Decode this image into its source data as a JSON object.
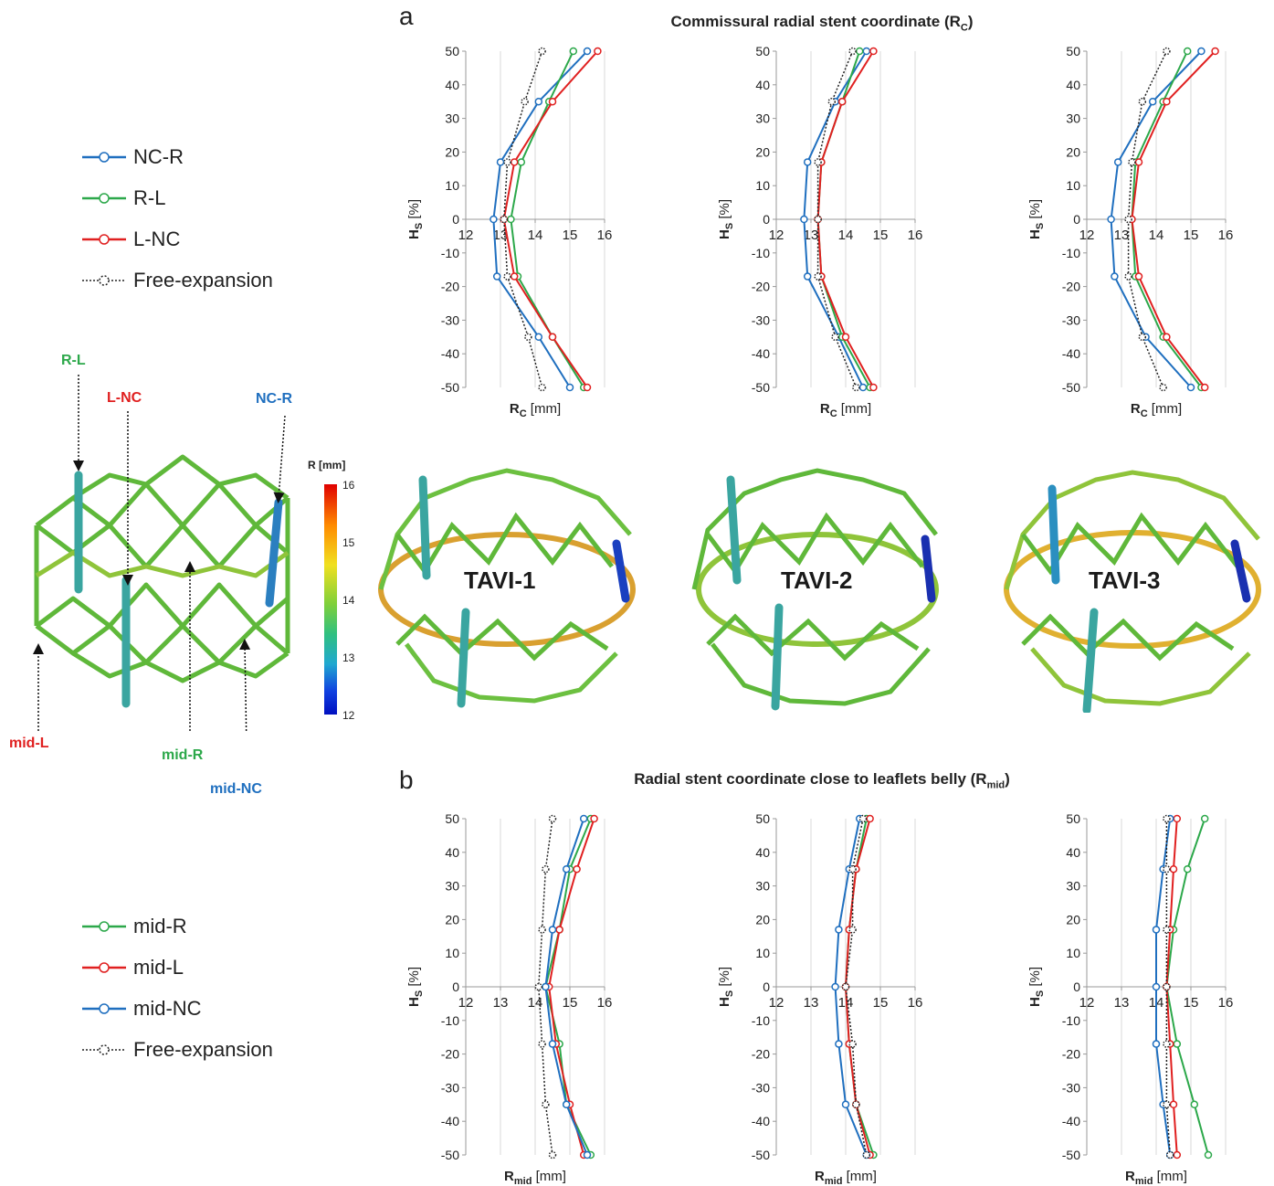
{
  "panel_a": {
    "letter": "a",
    "title_main": "Commissural radial stent coordinate (R",
    "title_sub": "C",
    "title_end": ")"
  },
  "panel_b": {
    "letter": "b",
    "title_main": "Radial stent coordinate close to leaflets belly (R",
    "title_sub": "mid",
    "title_end": ")"
  },
  "legend_top": [
    {
      "label": "NC-R",
      "color": "#1f6fbf",
      "dashed": false
    },
    {
      "label": "R-L",
      "color": "#2ca84a",
      "dashed": false
    },
    {
      "label": "L-NC",
      "color": "#e02020",
      "dashed": false
    },
    {
      "label": "Free-expansion",
      "color": "#222222",
      "dashed": true
    }
  ],
  "legend_bottom": [
    {
      "label": "mid-R",
      "color": "#2ca84a",
      "dashed": false
    },
    {
      "label": "mid-L",
      "color": "#e02020",
      "dashed": false
    },
    {
      "label": "mid-NC",
      "color": "#1f6fbf",
      "dashed": false
    },
    {
      "label": "Free-expansion",
      "color": "#222222",
      "dashed": true
    }
  ],
  "stent_labels": {
    "rl": "R-L",
    "lnc": "L-NC",
    "ncr": "NC-R",
    "midl": "mid-L",
    "midr": "mid-R",
    "midnc": "mid-NC"
  },
  "colorbar": {
    "title": "R [mm]",
    "ticks": [
      "16",
      "15",
      "14",
      "13",
      "12"
    ]
  },
  "tavi_labels": [
    "TAVI-1",
    "TAVI-2",
    "TAVI-3"
  ],
  "chart_data": [
    {
      "type": "line",
      "panel": "a",
      "index": 1,
      "ylabel": "Hs [%]",
      "xlabel_main": "R",
      "xlabel_sub": "C",
      "xlabel_unit": " [mm]",
      "xlim": [
        12,
        16
      ],
      "ylim": [
        -50,
        50
      ],
      "xticks": [
        12,
        13,
        14,
        15,
        16
      ],
      "yticks": [
        50,
        40,
        30,
        20,
        10,
        0,
        -10,
        -20,
        -30,
        -40,
        -50
      ],
      "y": [
        50,
        35,
        17,
        0,
        -17,
        -35,
        -50
      ],
      "series": [
        {
          "name": "NC-R",
          "color": "#1f6fbf",
          "dashed": false,
          "x": [
            15.5,
            14.1,
            13.0,
            12.8,
            12.9,
            14.1,
            15.0
          ]
        },
        {
          "name": "R-L",
          "color": "#2ca84a",
          "dashed": false,
          "x": [
            15.1,
            14.4,
            13.6,
            13.3,
            13.5,
            14.5,
            15.4
          ]
        },
        {
          "name": "L-NC",
          "color": "#e02020",
          "dashed": false,
          "x": [
            15.8,
            14.5,
            13.4,
            13.1,
            13.4,
            14.5,
            15.5
          ]
        },
        {
          "name": "Free-expansion",
          "color": "#222222",
          "dashed": true,
          "x": [
            14.2,
            13.7,
            13.2,
            13.1,
            13.2,
            13.8,
            14.2
          ]
        }
      ]
    },
    {
      "type": "line",
      "panel": "a",
      "index": 2,
      "ylabel": "Hs [%]",
      "xlabel_main": "R",
      "xlabel_sub": "C",
      "xlabel_unit": " [mm]",
      "xlim": [
        12,
        16
      ],
      "ylim": [
        -50,
        50
      ],
      "xticks": [
        12,
        13,
        14,
        15,
        16
      ],
      "yticks": [
        50,
        40,
        30,
        20,
        10,
        0,
        -10,
        -20,
        -30,
        -40,
        -50
      ],
      "y": [
        50,
        35,
        17,
        0,
        -17,
        -35,
        -50
      ],
      "series": [
        {
          "name": "NC-R",
          "color": "#1f6fbf",
          "dashed": false,
          "x": [
            14.6,
            13.7,
            12.9,
            12.8,
            12.9,
            13.8,
            14.5
          ]
        },
        {
          "name": "R-L",
          "color": "#2ca84a",
          "dashed": false,
          "x": [
            14.4,
            13.9,
            13.3,
            13.2,
            13.3,
            13.9,
            14.7
          ]
        },
        {
          "name": "L-NC",
          "color": "#e02020",
          "dashed": false,
          "x": [
            14.8,
            13.9,
            13.3,
            13.2,
            13.3,
            14.0,
            14.8
          ]
        },
        {
          "name": "Free-expansion",
          "color": "#222222",
          "dashed": true,
          "x": [
            14.2,
            13.6,
            13.2,
            13.2,
            13.2,
            13.7,
            14.3
          ]
        }
      ]
    },
    {
      "type": "line",
      "panel": "a",
      "index": 3,
      "ylabel": "Hs [%]",
      "xlabel_main": "R",
      "xlabel_sub": "C",
      "xlabel_unit": " [mm]",
      "xlim": [
        12,
        16
      ],
      "ylim": [
        -50,
        50
      ],
      "xticks": [
        12,
        13,
        14,
        15,
        16
      ],
      "yticks": [
        50,
        40,
        30,
        20,
        10,
        0,
        -10,
        -20,
        -30,
        -40,
        -50
      ],
      "y": [
        50,
        35,
        17,
        0,
        -17,
        -35,
        -50
      ],
      "series": [
        {
          "name": "NC-R",
          "color": "#1f6fbf",
          "dashed": false,
          "x": [
            15.3,
            13.9,
            12.9,
            12.7,
            12.8,
            13.7,
            15.0
          ]
        },
        {
          "name": "R-L",
          "color": "#2ca84a",
          "dashed": false,
          "x": [
            14.9,
            14.2,
            13.4,
            13.3,
            13.4,
            14.2,
            15.3
          ]
        },
        {
          "name": "L-NC",
          "color": "#e02020",
          "dashed": false,
          "x": [
            15.7,
            14.3,
            13.5,
            13.3,
            13.5,
            14.3,
            15.4
          ]
        },
        {
          "name": "Free-expansion",
          "color": "#222222",
          "dashed": true,
          "x": [
            14.3,
            13.6,
            13.3,
            13.2,
            13.2,
            13.6,
            14.2
          ]
        }
      ]
    },
    {
      "type": "line",
      "panel": "b",
      "index": 1,
      "ylabel": "Hs [%]",
      "xlabel_main": "R",
      "xlabel_sub": "mid",
      "xlabel_unit": " [mm]",
      "xlim": [
        12,
        16
      ],
      "ylim": [
        -50,
        50
      ],
      "xticks": [
        12,
        13,
        14,
        15,
        16
      ],
      "yticks": [
        50,
        40,
        30,
        20,
        10,
        0,
        -10,
        -20,
        -30,
        -40,
        -50
      ],
      "y": [
        50,
        35,
        17,
        0,
        -17,
        -35,
        -50
      ],
      "series": [
        {
          "name": "mid-R",
          "color": "#2ca84a",
          "dashed": false,
          "x": [
            15.6,
            15.0,
            14.7,
            14.3,
            14.7,
            14.9,
            15.6
          ]
        },
        {
          "name": "mid-L",
          "color": "#e02020",
          "dashed": false,
          "x": [
            15.7,
            15.2,
            14.7,
            14.4,
            14.6,
            15.0,
            15.4
          ]
        },
        {
          "name": "mid-NC",
          "color": "#1f6fbf",
          "dashed": false,
          "x": [
            15.4,
            14.9,
            14.5,
            14.3,
            14.5,
            14.9,
            15.5
          ]
        },
        {
          "name": "Free-expansion",
          "color": "#222222",
          "dashed": true,
          "x": [
            14.5,
            14.3,
            14.2,
            14.1,
            14.2,
            14.3,
            14.5
          ]
        }
      ]
    },
    {
      "type": "line",
      "panel": "b",
      "index": 2,
      "ylabel": "Hs [%]",
      "xlabel_main": "R",
      "xlabel_sub": "mid",
      "xlabel_unit": " [mm]",
      "xlim": [
        12,
        16
      ],
      "ylim": [
        -50,
        50
      ],
      "xticks": [
        12,
        13,
        14,
        15,
        16
      ],
      "yticks": [
        50,
        40,
        30,
        20,
        10,
        0,
        -10,
        -20,
        -30,
        -40,
        -50
      ],
      "y": [
        50,
        35,
        17,
        0,
        -17,
        -35,
        -50
      ],
      "series": [
        {
          "name": "mid-R",
          "color": "#2ca84a",
          "dashed": false,
          "x": [
            14.6,
            14.3,
            14.1,
            14.0,
            14.1,
            14.3,
            14.8
          ]
        },
        {
          "name": "mid-L",
          "color": "#e02020",
          "dashed": false,
          "x": [
            14.7,
            14.3,
            14.1,
            14.0,
            14.1,
            14.3,
            14.7
          ]
        },
        {
          "name": "mid-NC",
          "color": "#1f6fbf",
          "dashed": false,
          "x": [
            14.4,
            14.1,
            13.8,
            13.7,
            13.8,
            14.0,
            14.6
          ]
        },
        {
          "name": "Free-expansion",
          "color": "#222222",
          "dashed": true,
          "x": [
            14.5,
            14.2,
            14.2,
            14.0,
            14.2,
            14.3,
            14.6
          ]
        }
      ]
    },
    {
      "type": "line",
      "panel": "b",
      "index": 3,
      "ylabel": "Hs [%]",
      "xlabel_main": "R",
      "xlabel_sub": "mid",
      "xlabel_unit": " [mm]",
      "xlim": [
        12,
        16
      ],
      "ylim": [
        -50,
        50
      ],
      "xticks": [
        12,
        13,
        14,
        15,
        16
      ],
      "yticks": [
        50,
        40,
        30,
        20,
        10,
        0,
        -10,
        -20,
        -30,
        -40,
        -50
      ],
      "y": [
        50,
        35,
        17,
        0,
        -17,
        -35,
        -50
      ],
      "series": [
        {
          "name": "mid-R",
          "color": "#2ca84a",
          "dashed": false,
          "x": [
            15.4,
            14.9,
            14.5,
            14.3,
            14.6,
            15.1,
            15.5
          ]
        },
        {
          "name": "mid-L",
          "color": "#e02020",
          "dashed": false,
          "x": [
            14.6,
            14.5,
            14.4,
            14.3,
            14.4,
            14.5,
            14.6
          ]
        },
        {
          "name": "mid-NC",
          "color": "#1f6fbf",
          "dashed": false,
          "x": [
            14.4,
            14.2,
            14.0,
            14.0,
            14.0,
            14.2,
            14.4
          ]
        },
        {
          "name": "Free-expansion",
          "color": "#222222",
          "dashed": true,
          "x": [
            14.3,
            14.3,
            14.3,
            14.3,
            14.3,
            14.3,
            14.4
          ]
        }
      ]
    }
  ]
}
